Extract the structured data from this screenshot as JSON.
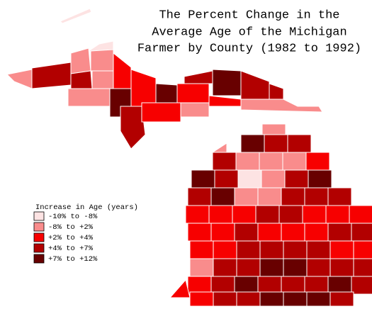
{
  "title": [
    "The Percent Change in the",
    "Average Age of the Michigan",
    "Farmer by County (1982 to 1992)"
  ],
  "legend": {
    "title": "Increase in Age (years)",
    "items": [
      {
        "label": "-10% to -8%",
        "color": "#fde3e3"
      },
      {
        "label": "-8% to +2%",
        "color": "#f98c8c"
      },
      {
        "label": "+2% to +4%",
        "color": "#f70000"
      },
      {
        "label": "+4% to +7%",
        "color": "#b20000"
      },
      {
        "label": "+7% to +12%",
        "color": "#680000"
      }
    ]
  }
}
